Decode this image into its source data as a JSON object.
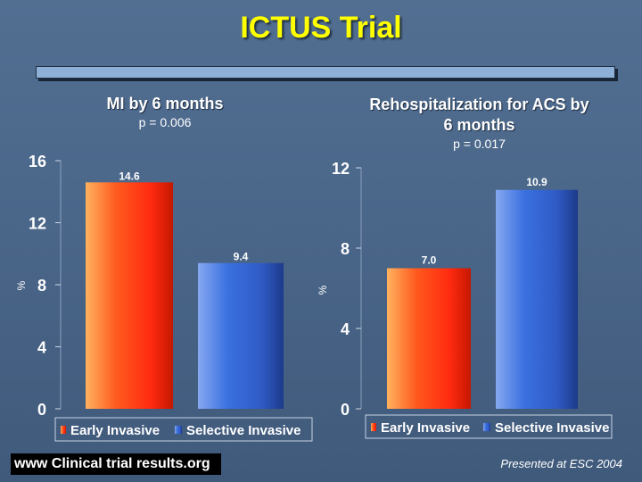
{
  "title": "ICTUS Trial",
  "footer": {
    "website_prefix": "www",
    "website_text": "Clinical trial results.org",
    "presented": "Presented at ESC 2004"
  },
  "colors": {
    "early_invasive": "#ff4a1a",
    "selective_invasive": "#3468d8",
    "title": "#ffff00"
  },
  "chart_data": [
    {
      "type": "bar",
      "title": "MI by 6 months",
      "subtitle": "p = 0.006",
      "ylabel": "%",
      "ylim": [
        0,
        16
      ],
      "yticks": [
        0,
        4,
        8,
        12,
        16
      ],
      "categories": [
        "Early Invasive",
        "Selective Invasive"
      ],
      "values": [
        14.6,
        9.4
      ],
      "value_labels": [
        "14.6",
        "9.4"
      ],
      "legend": [
        "Early Invasive",
        "Selective Invasive"
      ],
      "legend_position": "bottom"
    },
    {
      "type": "bar",
      "title": "Rehospitalization for ACS by 6 months",
      "subtitle": "p = 0.017",
      "ylabel": "%",
      "ylim": [
        0,
        12
      ],
      "yticks": [
        0,
        4,
        8,
        12
      ],
      "categories": [
        "Early Invasive",
        "Selective Invasive"
      ],
      "values": [
        7.0,
        10.9
      ],
      "value_labels": [
        "7.0",
        "10.9"
      ],
      "legend": [
        "Early Invasive",
        "Selective Invasive"
      ],
      "legend_position": "bottom"
    }
  ]
}
